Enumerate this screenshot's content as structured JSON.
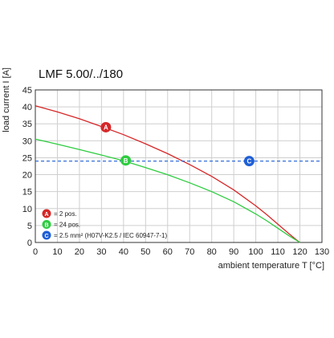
{
  "chart_data": {
    "type": "line",
    "title": "LMF 5.00/../180",
    "xlabel": "ambient temperature T [°C]",
    "ylabel": "load current I [A]",
    "xlim": [
      0,
      130
    ],
    "ylim": [
      0,
      45
    ],
    "xticks": [
      "0",
      "10",
      "20",
      "30",
      "40",
      "50",
      "60",
      "70",
      "80",
      "90",
      "100",
      "110",
      "120",
      "130"
    ],
    "yticks": [
      "0",
      "5",
      "10",
      "15",
      "20",
      "25",
      "30",
      "35",
      "40",
      "45"
    ],
    "grid": true,
    "legend_position": "bottom-left",
    "series": [
      {
        "name": "= 2 pos.",
        "marker": "A",
        "color": "#d62728",
        "style": "solid",
        "x": [
          0,
          10,
          20,
          30,
          40,
          50,
          60,
          70,
          80,
          90,
          100,
          105,
          110,
          115,
          118,
          120
        ],
        "y": [
          40.3,
          38.5,
          36.5,
          34.2,
          31.8,
          29.1,
          26.2,
          23.0,
          19.5,
          15.5,
          10.8,
          8.2,
          5.4,
          2.6,
          1.0,
          0
        ]
      },
      {
        "name": "= 24 pos.",
        "marker": "B",
        "color": "#2ecc40",
        "style": "solid",
        "x": [
          0,
          10,
          20,
          30,
          40,
          50,
          60,
          70,
          80,
          90,
          100,
          105,
          110,
          115,
          118,
          120
        ],
        "y": [
          30.5,
          29.0,
          27.4,
          25.8,
          24.1,
          22.1,
          20.0,
          17.6,
          15.0,
          12.0,
          8.4,
          6.4,
          4.2,
          2.0,
          0.8,
          0
        ]
      },
      {
        "name": "= 2.5 mm² (H07V-K2.5 / IEC 60947-7-1)",
        "marker": "C",
        "color": "#1f5fd6",
        "style": "dashed",
        "x": [
          0,
          130
        ],
        "y": [
          24,
          24
        ]
      }
    ],
    "annotations": [
      {
        "label": "A",
        "x": 32,
        "y": 34,
        "color": "#d62728"
      },
      {
        "label": "B",
        "x": 41,
        "y": 24.2,
        "color": "#2ecc40"
      },
      {
        "label": "C",
        "x": 97,
        "y": 24,
        "color": "#1f5fd6"
      }
    ]
  }
}
